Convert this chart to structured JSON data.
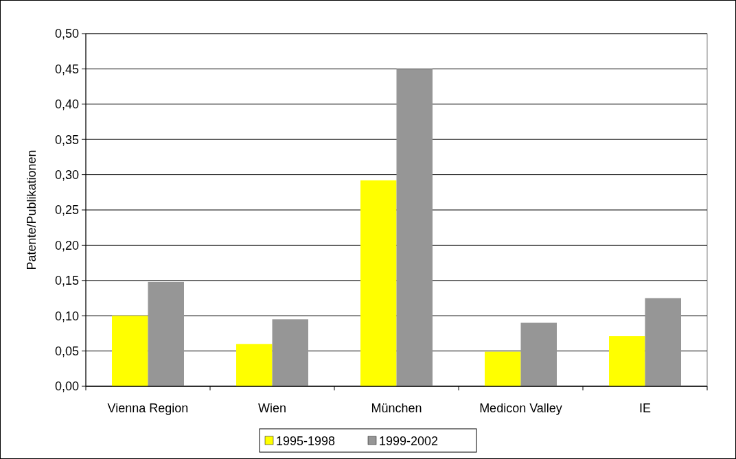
{
  "chart_data": {
    "type": "bar",
    "ylabel": "Patente/Publikationen",
    "categories": [
      "Vienna Region",
      "Wien",
      "München",
      "Medicon Valley",
      "IE"
    ],
    "series": [
      {
        "name": "1995-1998",
        "color": "#ffff00",
        "values": [
          0.1,
          0.06,
          0.292,
          0.049,
          0.071
        ]
      },
      {
        "name": "1999-2002",
        "color": "#969696",
        "values": [
          0.148,
          0.095,
          0.45,
          0.09,
          0.125
        ]
      }
    ],
    "ylim": [
      0,
      0.5
    ],
    "yticks": [
      {
        "value": 0,
        "label": "0,00"
      },
      {
        "value": 0.05,
        "label": "0,05"
      },
      {
        "value": 0.1,
        "label": "0,10"
      },
      {
        "value": 0.15,
        "label": "0,15"
      },
      {
        "value": 0.2,
        "label": "0,20"
      },
      {
        "value": 0.25,
        "label": "0,25"
      },
      {
        "value": 0.3,
        "label": "0,30"
      },
      {
        "value": 0.35,
        "label": "0,35"
      },
      {
        "value": 0.4,
        "label": "0,40"
      },
      {
        "value": 0.45,
        "label": "0,45"
      },
      {
        "value": 0.5,
        "label": "0,50"
      }
    ],
    "grid": "y",
    "legend": "bottom"
  }
}
